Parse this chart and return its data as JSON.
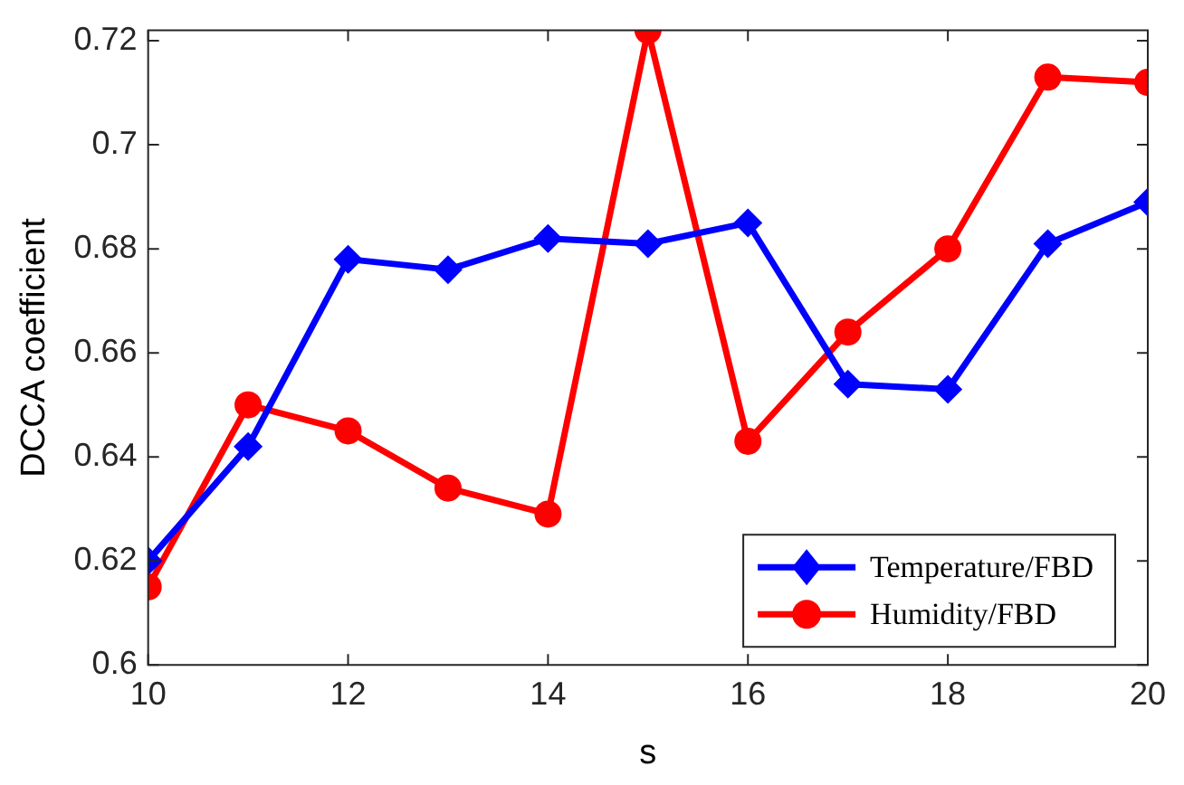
{
  "chart_data": {
    "type": "line",
    "xlabel": "s",
    "ylabel": "DCCA coefficient",
    "x": [
      10,
      11,
      12,
      13,
      14,
      15,
      16,
      17,
      18,
      19,
      20
    ],
    "series": [
      {
        "name": "Temperature/FBD",
        "color": "#0000ff",
        "marker": "diamond",
        "values": [
          0.62,
          0.642,
          0.678,
          0.676,
          0.682,
          0.681,
          0.685,
          0.654,
          0.653,
          0.681,
          0.689
        ]
      },
      {
        "name": "Humidity/FBD",
        "color": "#ff0000",
        "marker": "circle",
        "values": [
          0.615,
          0.65,
          0.645,
          0.634,
          0.629,
          0.722,
          0.643,
          0.664,
          0.68,
          0.713,
          0.712
        ]
      }
    ],
    "xlim": [
      10,
      20
    ],
    "xticks": [
      10,
      12,
      14,
      16,
      18,
      20
    ],
    "ylim": [
      0.6,
      0.722
    ],
    "yticks": [
      0.6,
      {
        "value": 0.62,
        "label": "0.62"
      },
      {
        "value": 0.64,
        "label": "0.64"
      },
      {
        "value": 0.66,
        "label": "0.66"
      },
      {
        "value": 0.68,
        "label": "0.68"
      },
      {
        "value": 0.7,
        "label": "0.7"
      },
      {
        "value": 0.72,
        "label": "0.72"
      }
    ],
    "grid": false,
    "legend": "bottom right",
    "line_style": "solid"
  }
}
